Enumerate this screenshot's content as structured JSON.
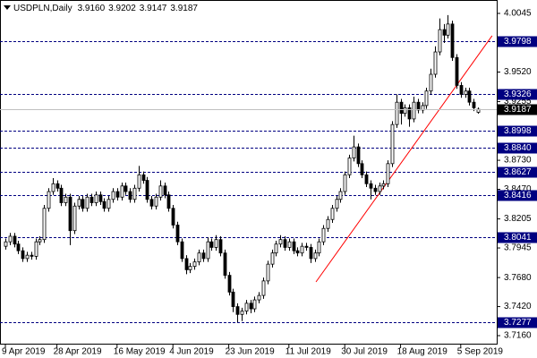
{
  "chart_data": {
    "type": "candlestick",
    "symbol": "USDPLN,Daily",
    "header_values": [
      "3.9160",
      "3.9202",
      "3.9147",
      "3.9187"
    ],
    "candles": [
      [
        3.796,
        3.803,
        3.793,
        3.8
      ],
      [
        3.8,
        3.808,
        3.797,
        3.805
      ],
      [
        3.805,
        3.808,
        3.795,
        3.798
      ],
      [
        3.798,
        3.801,
        3.789,
        3.792
      ],
      [
        3.792,
        3.795,
        3.782,
        3.785
      ],
      [
        3.785,
        3.791,
        3.782,
        3.788
      ],
      [
        3.788,
        3.791,
        3.784,
        3.787
      ],
      [
        3.787,
        3.803,
        3.784,
        3.8
      ],
      [
        3.8,
        3.805,
        3.797,
        3.802
      ],
      [
        3.802,
        3.833,
        3.799,
        3.83
      ],
      [
        3.83,
        3.848,
        3.827,
        3.845
      ],
      [
        3.845,
        3.857,
        3.842,
        3.852
      ],
      [
        3.852,
        3.855,
        3.845,
        3.848
      ],
      [
        3.848,
        3.851,
        3.832,
        3.835
      ],
      [
        3.835,
        3.843,
        3.832,
        3.84
      ],
      [
        3.84,
        3.843,
        3.797,
        3.81
      ],
      [
        3.81,
        3.835,
        3.807,
        3.832
      ],
      [
        3.832,
        3.841,
        3.829,
        3.838
      ],
      [
        3.838,
        3.841,
        3.827,
        3.83
      ],
      [
        3.83,
        3.843,
        3.827,
        3.84
      ],
      [
        3.84,
        3.843,
        3.832,
        3.835
      ],
      [
        3.835,
        3.845,
        3.832,
        3.842
      ],
      [
        3.842,
        3.845,
        3.833,
        3.836
      ],
      [
        3.836,
        3.839,
        3.827,
        3.83
      ],
      [
        3.83,
        3.841,
        3.827,
        3.838
      ],
      [
        3.838,
        3.848,
        3.835,
        3.845
      ],
      [
        3.845,
        3.848,
        3.837,
        3.84
      ],
      [
        3.84,
        3.853,
        3.837,
        3.85
      ],
      [
        3.85,
        3.853,
        3.842,
        3.845
      ],
      [
        3.845,
        3.848,
        3.835,
        3.838
      ],
      [
        3.838,
        3.851,
        3.835,
        3.848
      ],
      [
        3.848,
        3.868,
        3.845,
        3.86
      ],
      [
        3.86,
        3.863,
        3.852,
        3.855
      ],
      [
        3.855,
        3.858,
        3.835,
        3.838
      ],
      [
        3.838,
        3.841,
        3.829,
        3.832
      ],
      [
        3.832,
        3.843,
        3.829,
        3.84
      ],
      [
        3.84,
        3.855,
        3.837,
        3.85
      ],
      [
        3.85,
        3.853,
        3.839,
        3.842
      ],
      [
        3.842,
        3.845,
        3.827,
        3.83
      ],
      [
        3.83,
        3.833,
        3.812,
        3.815
      ],
      [
        3.815,
        3.818,
        3.797,
        3.8
      ],
      [
        3.8,
        3.803,
        3.782,
        3.785
      ],
      [
        3.785,
        3.788,
        3.771,
        3.775
      ],
      [
        3.775,
        3.781,
        3.772,
        3.778
      ],
      [
        3.778,
        3.785,
        3.775,
        3.782
      ],
      [
        3.782,
        3.793,
        3.779,
        3.79
      ],
      [
        3.79,
        3.793,
        3.782,
        3.785
      ],
      [
        3.785,
        3.804,
        3.782,
        3.8
      ],
      [
        3.8,
        3.803,
        3.792,
        3.795
      ],
      [
        3.795,
        3.806,
        3.792,
        3.802
      ],
      [
        3.802,
        3.805,
        3.787,
        3.79
      ],
      [
        3.79,
        3.793,
        3.767,
        3.77
      ],
      [
        3.77,
        3.773,
        3.752,
        3.755
      ],
      [
        3.755,
        3.758,
        3.737,
        3.742
      ],
      [
        3.742,
        3.745,
        3.728,
        3.735
      ],
      [
        3.735,
        3.741,
        3.729,
        3.738
      ],
      [
        3.738,
        3.748,
        3.735,
        3.745
      ],
      [
        3.745,
        3.748,
        3.736,
        3.74
      ],
      [
        3.74,
        3.751,
        3.737,
        3.748
      ],
      [
        3.748,
        3.755,
        3.745,
        3.752
      ],
      [
        3.752,
        3.768,
        3.749,
        3.765
      ],
      [
        3.765,
        3.783,
        3.762,
        3.78
      ],
      [
        3.78,
        3.793,
        3.777,
        3.79
      ],
      [
        3.79,
        3.801,
        3.787,
        3.798
      ],
      [
        3.798,
        3.806,
        3.795,
        3.802
      ],
      [
        3.802,
        3.805,
        3.792,
        3.795
      ],
      [
        3.795,
        3.803,
        3.792,
        3.8
      ],
      [
        3.8,
        3.803,
        3.789,
        3.792
      ],
      [
        3.792,
        3.795,
        3.787,
        3.79
      ],
      [
        3.79,
        3.799,
        3.787,
        3.796
      ],
      [
        3.796,
        3.799,
        3.792,
        3.795
      ],
      [
        3.795,
        3.798,
        3.781,
        3.785
      ],
      [
        3.785,
        3.793,
        3.782,
        3.79
      ],
      [
        3.79,
        3.803,
        3.787,
        3.8
      ],
      [
        3.8,
        3.815,
        3.797,
        3.812
      ],
      [
        3.812,
        3.823,
        3.809,
        3.82
      ],
      [
        3.82,
        3.833,
        3.817,
        3.83
      ],
      [
        3.83,
        3.841,
        3.827,
        3.838
      ],
      [
        3.838,
        3.848,
        3.835,
        3.845
      ],
      [
        3.845,
        3.863,
        3.842,
        3.86
      ],
      [
        3.86,
        3.878,
        3.857,
        3.875
      ],
      [
        3.875,
        3.895,
        3.872,
        3.885
      ],
      [
        3.885,
        3.888,
        3.867,
        3.87
      ],
      [
        3.87,
        3.873,
        3.857,
        3.86
      ],
      [
        3.86,
        3.863,
        3.849,
        3.852
      ],
      [
        3.852,
        3.855,
        3.838,
        3.848
      ],
      [
        3.848,
        3.851,
        3.842,
        3.845
      ],
      [
        3.845,
        3.853,
        3.842,
        3.85
      ],
      [
        3.85,
        3.855,
        3.847,
        3.852
      ],
      [
        3.852,
        3.873,
        3.849,
        3.87
      ],
      [
        3.87,
        3.908,
        3.867,
        3.905
      ],
      [
        3.905,
        3.932,
        3.902,
        3.925
      ],
      [
        3.925,
        3.928,
        3.905,
        3.915
      ],
      [
        3.915,
        3.923,
        3.912,
        3.92
      ],
      [
        3.92,
        3.923,
        3.903,
        3.91
      ],
      [
        3.91,
        3.93,
        3.907,
        3.925
      ],
      [
        3.925,
        3.928,
        3.915,
        3.918
      ],
      [
        3.918,
        3.925,
        3.915,
        3.922
      ],
      [
        3.922,
        3.938,
        3.919,
        3.935
      ],
      [
        3.935,
        3.955,
        3.932,
        3.95
      ],
      [
        3.95,
        3.975,
        3.947,
        3.97
      ],
      [
        3.97,
        4.0,
        3.967,
        3.99
      ],
      [
        3.99,
        3.995,
        3.978,
        3.985
      ],
      [
        3.985,
        4.003,
        3.982,
        3.995
      ],
      [
        3.995,
        3.998,
        3.962,
        3.965
      ],
      [
        3.965,
        3.968,
        3.937,
        3.94
      ],
      [
        3.94,
        3.943,
        3.929,
        3.932
      ],
      [
        3.932,
        3.938,
        3.929,
        3.935
      ],
      [
        3.935,
        3.938,
        3.922,
        3.925
      ],
      [
        3.925,
        3.928,
        3.917,
        3.92
      ],
      [
        3.916,
        3.9202,
        3.9147,
        3.9187
      ]
    ],
    "ylim": [
      3.708,
      4.0165
    ],
    "yticks": [
      4.0045,
      {
        "value": 3.952,
        "label": "3.9520"
      },
      3.9255,
      {
        "value": 3.873,
        "label": "3.8730"
      },
      {
        "value": 3.847,
        "label": "3.8470"
      },
      3.8205,
      3.7945,
      {
        "value": 3.768,
        "label": "3.7680"
      },
      {
        "value": 3.742,
        "label": "3.7420"
      },
      {
        "value": 3.716,
        "label": "3.7160"
      }
    ],
    "xticks": [
      {
        "value": 0,
        "label": "9 Apr 2019"
      },
      {
        "value": 12,
        "label": "28 Apr 2019"
      },
      {
        "value": 26,
        "label": "16 May 2019"
      },
      {
        "value": 39,
        "label": "4 Jun 2019"
      },
      {
        "value": 52,
        "label": "23 Jun 2019"
      },
      {
        "value": 66,
        "label": "11 Jul 2019"
      },
      {
        "value": 79,
        "label": "30 Jul 2019"
      },
      {
        "value": 92,
        "label": "18 Aug 2019"
      },
      {
        "value": 106,
        "label": "5 Sep 2019"
      }
    ],
    "levels": [
      3.9798,
      3.9326,
      3.8998,
      {
        "value": 3.884,
        "label": "3.8840"
      },
      3.8627,
      3.8416,
      3.8041,
      3.7277
    ],
    "level_color": "#000080",
    "trendline": {
      "x": [
        72.3,
        113.3
      ],
      "y": [
        3.7641,
        3.9845
      ],
      "color": "#ff0000"
    }
  }
}
